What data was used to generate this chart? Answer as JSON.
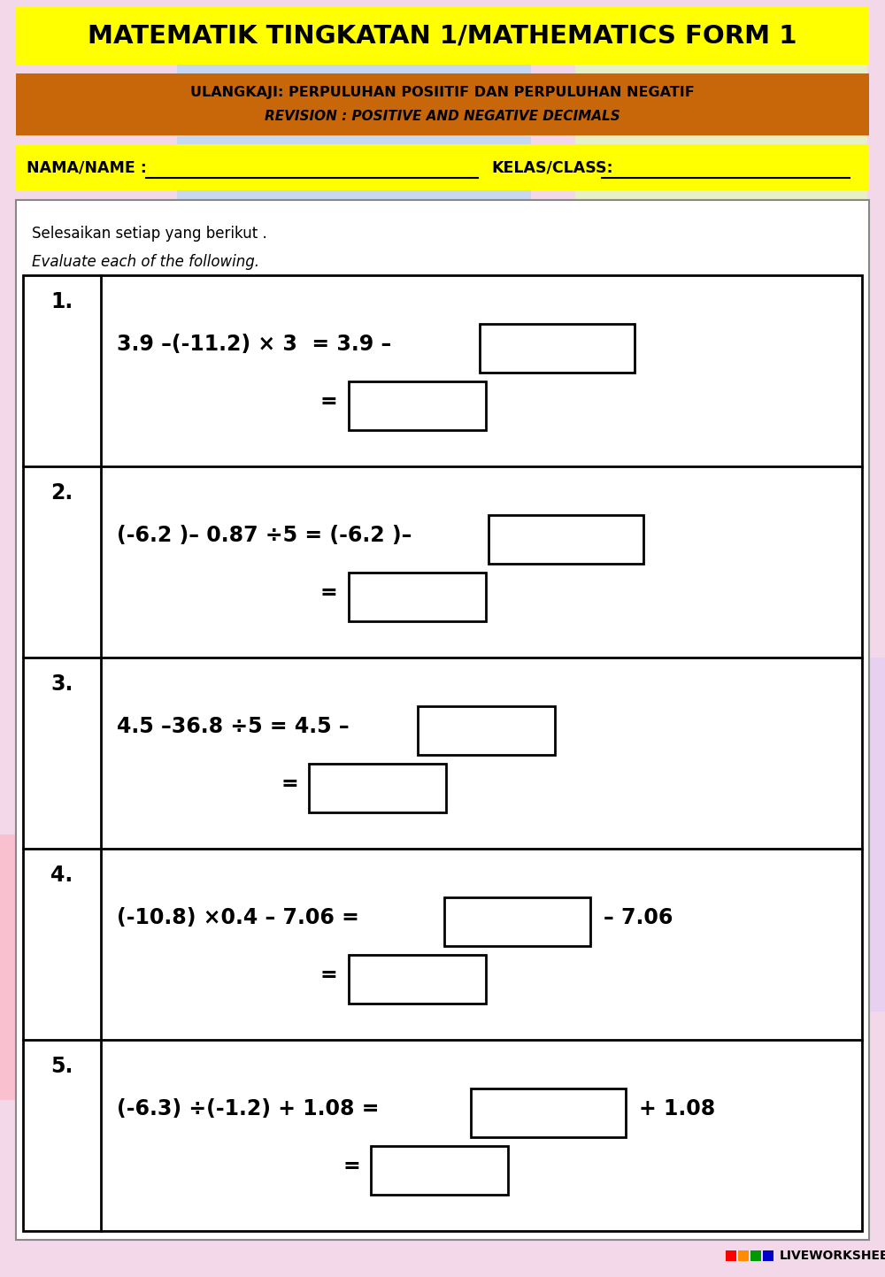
{
  "title": "MATEMATIK TINGKATAN 1/MATHEMATICS FORM 1",
  "title_bg": "#FFFF00",
  "subtitle_line1": "ULANGKAJI: PERPULUHAN POSIITIF DAN PERPULUHAN NEGATIF",
  "subtitle_line2": "REVISION : POSITIVE AND NEGATIVE DECIMALS",
  "subtitle_bg": "#C8660A",
  "name_label": "NAMA/NAME :",
  "class_label": "KELAS/CLASS:",
  "name_bg": "#FFFF00",
  "instruction_line1": "Selesaikan setiap yang berikut .",
  "instruction_line2": "Evaluate each of the following.",
  "questions": [
    {
      "number": "1.",
      "line1": "3.9 –(-11.2) × 3  = 3.9 –",
      "line2": "="
    },
    {
      "number": "2.",
      "line1": "(-6.2 )– 0.87 ÷5 = (-6.2 )–",
      "line2": "="
    },
    {
      "number": "3.",
      "line1": "4.5 –36.8 ÷5 = 4.5 –",
      "line2": "="
    },
    {
      "number": "4.",
      "line1": "(-10.8) ×0.4 – 7.06 =",
      "line1_suffix": "– 7.06",
      "line2": "="
    },
    {
      "number": "5.",
      "line1": "(-6.3) ÷(-1.2) + 1.08 =",
      "line1_suffix": "+ 1.08",
      "line2": "="
    }
  ],
  "bg_colors": [
    "#F5C0C0",
    "#F0D0E8",
    "#E8E0F0",
    "#F8E8C0",
    "#E0F0D8"
  ],
  "worksheet_bg": "#FFFFFF",
  "watermark_text": "LIVEWORKSHEETS",
  "watermark_colors": [
    "#FF0000",
    "#FF8C00",
    "#009900",
    "#0000CC"
  ]
}
